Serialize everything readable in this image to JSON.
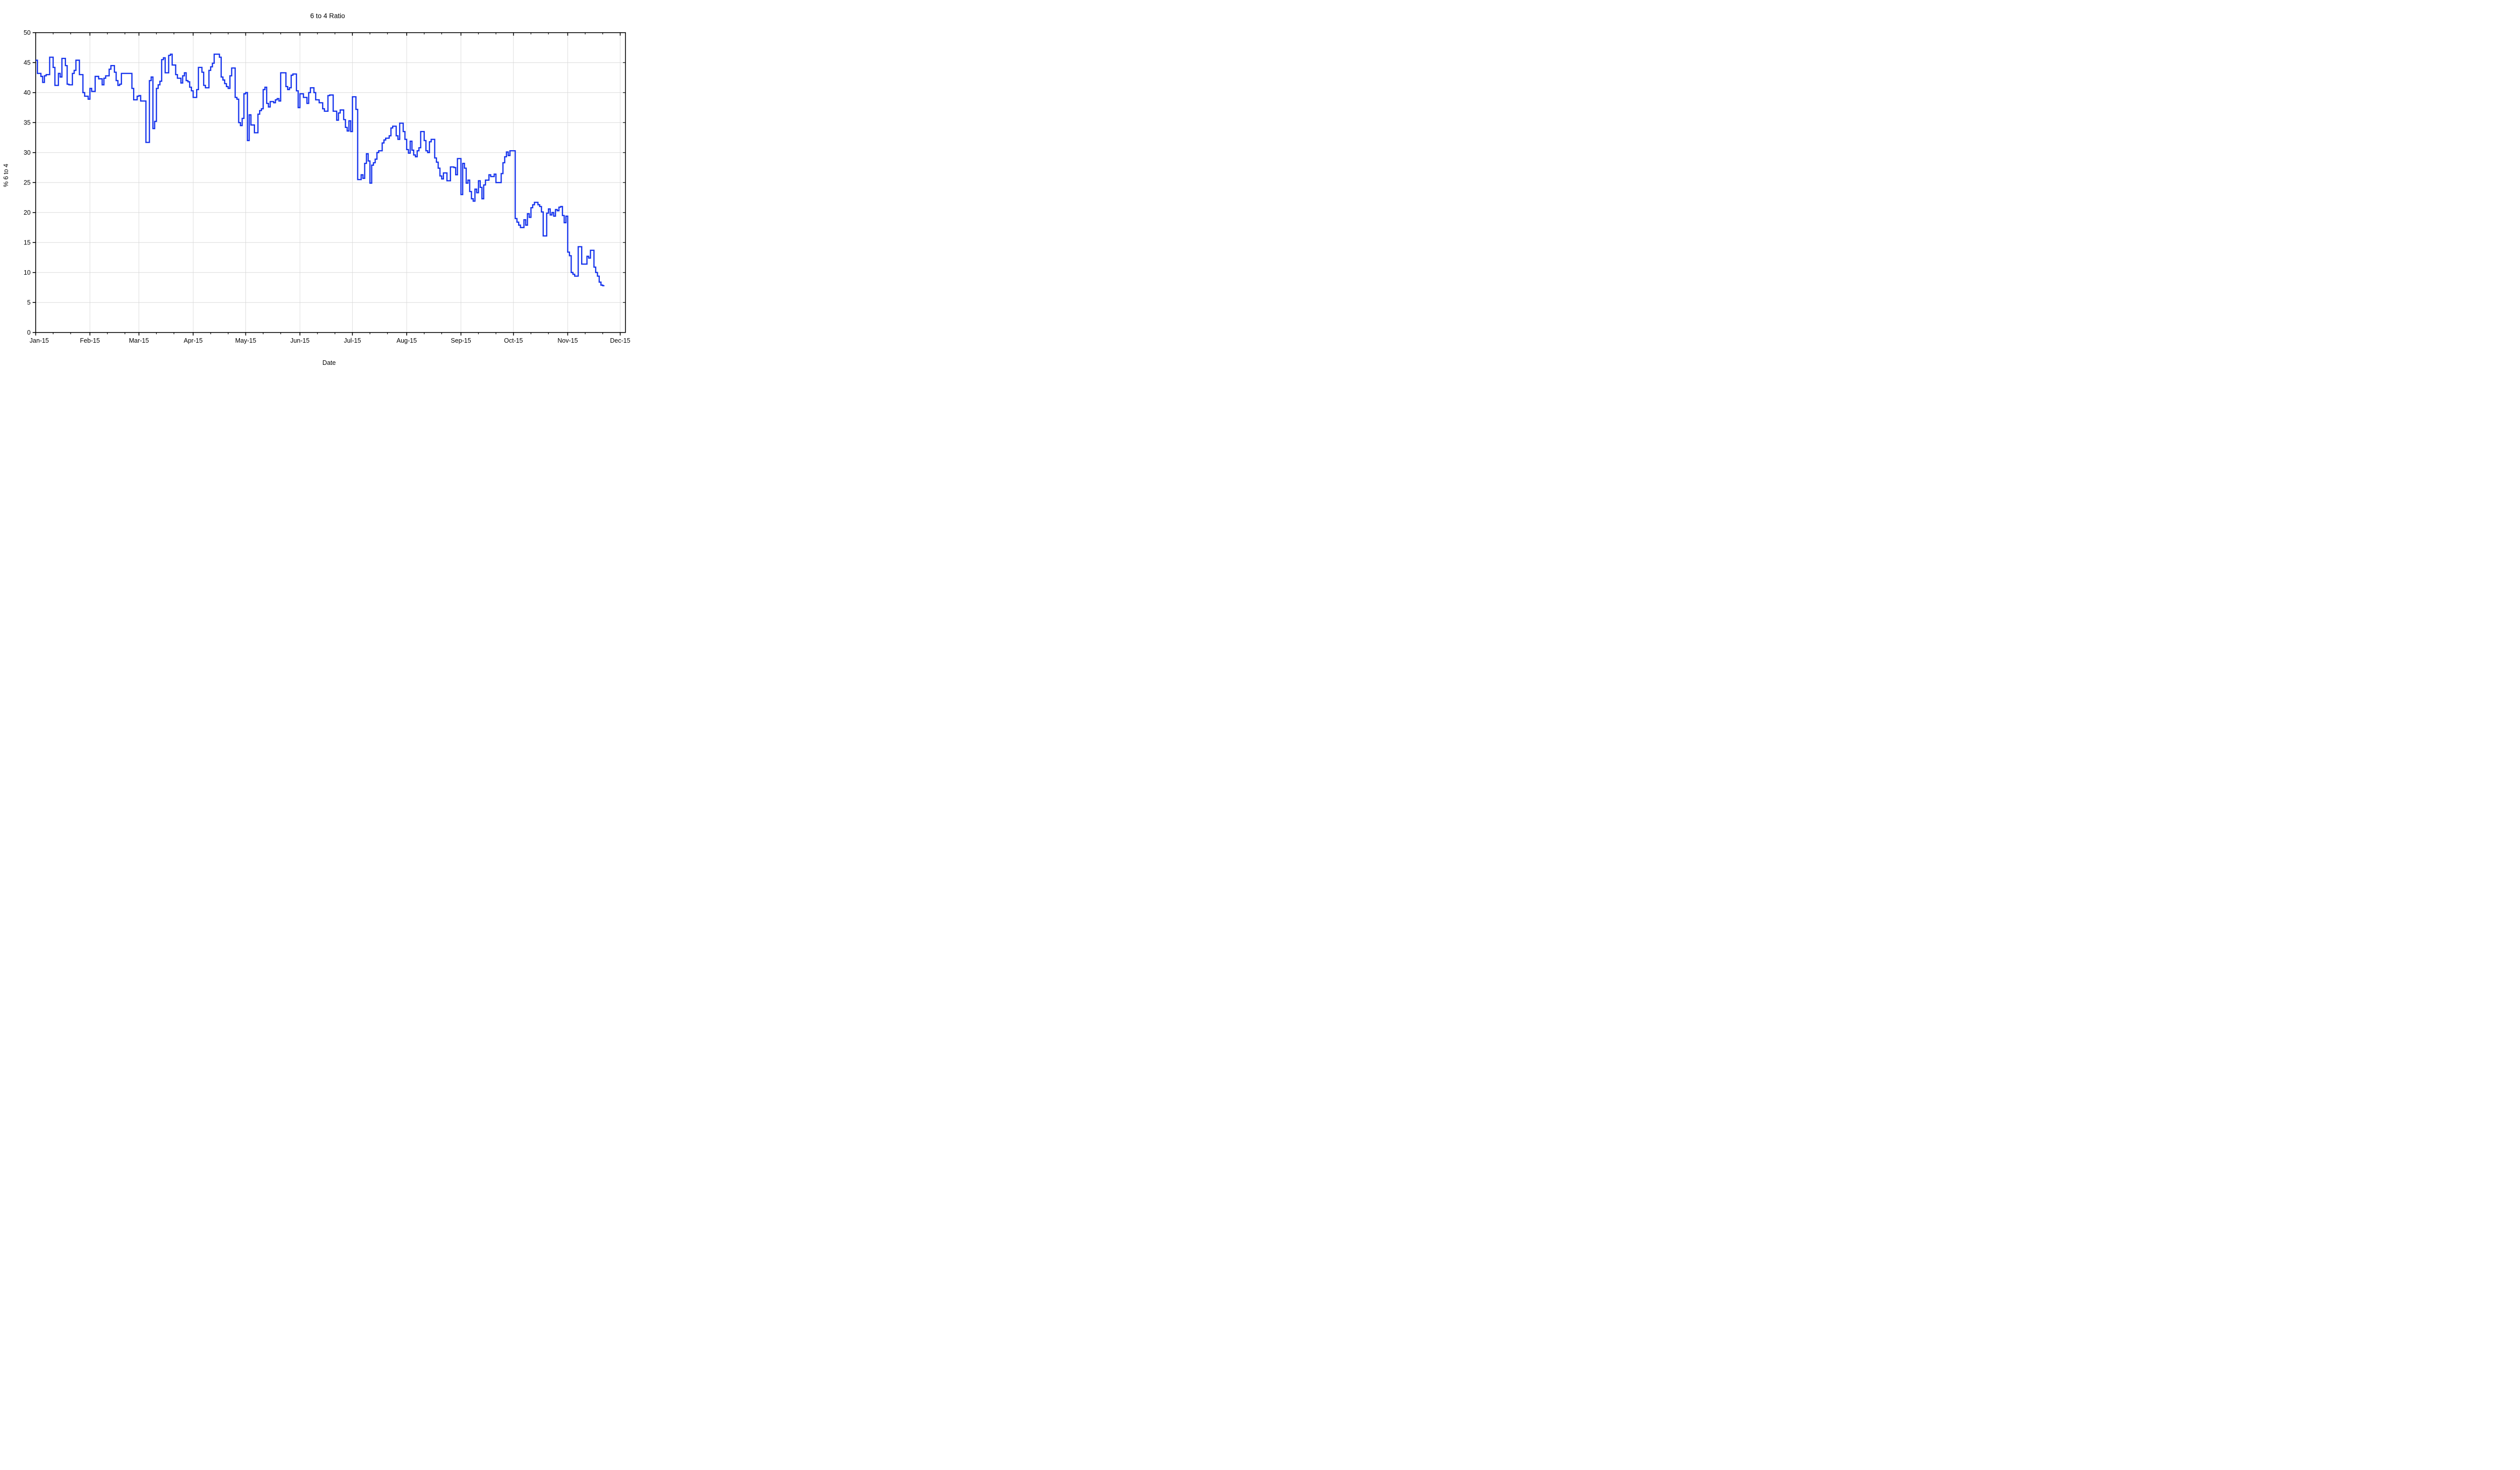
{
  "title": "6 to 4 Ratio",
  "chart_data": {
    "type": "line",
    "subtype": "step",
    "title": "6 to 4 Ratio",
    "xlabel": "Date",
    "ylabel": "% 6 to 4",
    "ylim": [
      0,
      50
    ],
    "y_ticks": [
      0,
      5,
      10,
      15,
      20,
      25,
      30,
      35,
      40,
      45,
      50
    ],
    "x_tick_labels": [
      "Jan-15",
      "Feb-15",
      "Mar-15",
      "Apr-15",
      "May-15",
      "Jun-15",
      "Jul-15",
      "Aug-15",
      "Sep-15",
      "Oct-15",
      "Nov-15",
      "Dec-15"
    ],
    "month_lengths": [
      31,
      28,
      31,
      30,
      31,
      30,
      31,
      31,
      30,
      31,
      30,
      31
    ],
    "grid": true,
    "legend": "none",
    "line_color": "#1432ec",
    "grid_color": "#d9d9d9",
    "axis_color": "#000000",
    "series": [
      {
        "name": "6 to 4 ratio",
        "start": "Jan-15",
        "frequency": "daily",
        "daily_values": [
          45.4,
          43.2,
          43.2,
          42.7,
          41.7,
          42.8,
          43.0,
          43.0,
          45.9,
          45.9,
          44.2,
          41.2,
          41.2,
          43.2,
          42.6,
          45.7,
          45.7,
          44.5,
          41.4,
          41.3,
          41.3,
          43.2,
          43.7,
          45.4,
          45.4,
          43.0,
          43.0,
          40.0,
          39.4,
          39.4,
          38.9,
          40.7,
          40.2,
          40.2,
          42.7,
          42.7,
          42.3,
          42.3,
          41.3,
          42.4,
          42.8,
          42.8,
          43.9,
          44.5,
          44.5,
          43.4,
          42.0,
          41.2,
          41.4,
          43.2,
          43.2,
          43.2,
          43.2,
          43.2,
          43.2,
          40.7,
          38.8,
          38.8,
          39.4,
          39.5,
          38.6,
          38.6,
          38.6,
          31.7,
          31.7,
          42.0,
          42.6,
          34.0,
          35.2,
          40.7,
          41.3,
          41.9,
          45.5,
          45.8,
          43.3,
          43.3,
          46.2,
          46.4,
          44.6,
          44.6,
          43.0,
          42.4,
          42.4,
          41.6,
          42.8,
          43.3,
          42.0,
          41.8,
          40.9,
          40.3,
          39.2,
          39.2,
          40.5,
          44.2,
          44.2,
          43.4,
          41.2,
          40.8,
          40.8,
          43.7,
          44.3,
          44.9,
          46.4,
          46.4,
          46.4,
          45.9,
          42.6,
          42.1,
          41.5,
          41.0,
          40.7,
          42.8,
          44.1,
          44.1,
          39.2,
          38.9,
          35.0,
          34.5,
          35.7,
          39.8,
          40.0,
          32.0,
          36.3,
          34.6,
          34.6,
          33.3,
          33.3,
          36.4,
          37.0,
          37.3,
          40.5,
          40.9,
          38.2,
          37.6,
          38.5,
          38.5,
          38.3,
          38.8,
          39.0,
          38.6,
          43.3,
          43.3,
          43.3,
          41.0,
          40.5,
          40.8,
          42.9,
          43.1,
          43.1,
          40.3,
          37.5,
          39.8,
          39.8,
          39.2,
          39.2,
          38.2,
          40.0,
          40.8,
          40.8,
          40.0,
          38.8,
          38.8,
          38.3,
          38.3,
          37.3,
          36.9,
          36.9,
          39.5,
          39.6,
          39.6,
          36.9,
          36.9,
          35.4,
          36.6,
          37.1,
          37.1,
          35.5,
          34.2,
          33.6,
          35.3,
          33.5,
          39.3,
          39.3,
          37.2,
          25.5,
          25.5,
          26.3,
          25.7,
          28.2,
          29.8,
          28.6,
          24.9,
          27.9,
          28.3,
          28.9,
          30.0,
          30.3,
          30.3,
          31.6,
          32.1,
          32.4,
          32.4,
          32.8,
          34.1,
          34.4,
          34.4,
          32.8,
          32.2,
          34.9,
          34.9,
          33.5,
          32.2,
          30.5,
          29.9,
          31.9,
          30.4,
          29.6,
          29.3,
          30.3,
          30.8,
          33.5,
          33.5,
          32.0,
          30.3,
          30.0,
          31.8,
          32.2,
          32.2,
          29.1,
          28.4,
          27.4,
          26.1,
          25.6,
          26.6,
          26.6,
          25.3,
          25.3,
          27.6,
          27.6,
          27.5,
          26.3,
          29.0,
          29.0,
          23.0,
          28.2,
          27.4,
          24.9,
          25.4,
          23.5,
          22.3,
          21.9,
          23.9,
          23.3,
          25.3,
          24.2,
          22.3,
          24.6,
          25.4,
          25.4,
          26.3,
          26.0,
          26.0,
          26.4,
          25.0,
          25.0,
          25.0,
          26.5,
          28.3,
          29.3,
          30.1,
          29.5,
          30.3,
          30.3,
          30.3,
          19.0,
          18.4,
          17.9,
          17.5,
          17.5,
          18.8,
          17.9,
          19.8,
          19.2,
          20.8,
          21.3,
          21.7,
          21.7,
          21.3,
          21.0,
          20.1,
          16.1,
          16.1,
          19.9,
          20.6,
          19.6,
          20.0,
          19.4,
          20.5,
          20.3,
          20.9,
          21.0,
          19.5,
          18.3,
          19.4,
          13.4,
          12.8,
          10.0,
          9.7,
          9.4,
          9.4,
          14.3,
          14.3,
          11.4,
          11.4,
          11.4,
          12.7,
          12.4,
          13.7,
          13.7,
          10.9,
          10.0,
          9.4,
          8.4,
          7.9,
          7.8
        ]
      }
    ]
  },
  "layout_values": {
    "minor_tick_days": [
      10,
      20
    ]
  }
}
